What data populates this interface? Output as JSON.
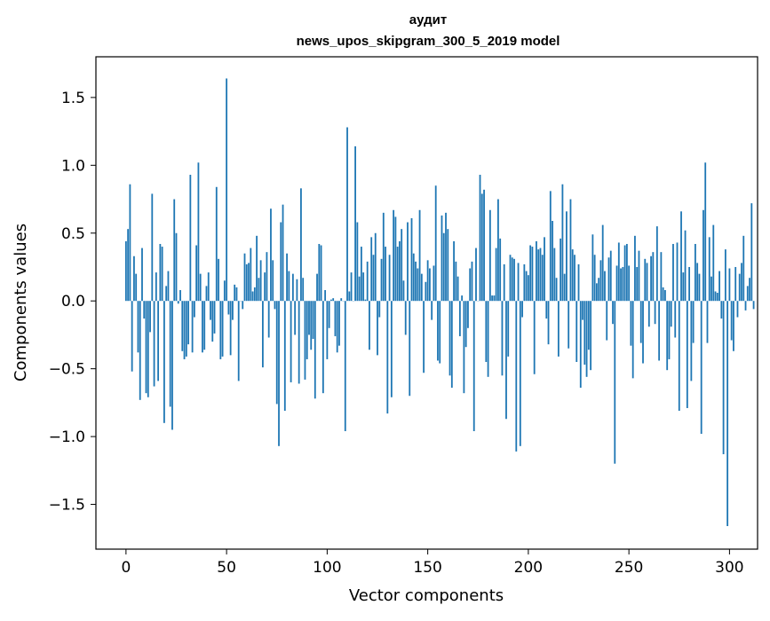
{
  "chart_data": {
    "type": "bar",
    "title": "аудит",
    "subtitle": "news_upos_skipgram_300_5_2019 model",
    "xlabel": "Vector components",
    "ylabel": "Components values",
    "xlim": [
      -14.95,
      313.95
    ],
    "ylim": [
      -1.83,
      1.8
    ],
    "xticks": [
      0,
      50,
      100,
      150,
      200,
      250,
      300
    ],
    "yticks": [
      -1.5,
      -1.0,
      -0.5,
      0.0,
      0.5,
      1.0,
      1.5
    ],
    "ytick_labels": [
      "−1.5",
      "−1.0",
      "−0.5",
      "0.0",
      "0.5",
      "1.0",
      "1.5"
    ],
    "bar_color": "#1f77b4",
    "grid": false,
    "legend": "none",
    "values": [
      0.44,
      0.53,
      0.86,
      -0.52,
      0.33,
      0.2,
      -0.38,
      -0.73,
      0.39,
      -0.13,
      -0.68,
      -0.71,
      -0.23,
      0.79,
      -0.63,
      0.21,
      -0.59,
      0.42,
      0.4,
      -0.9,
      0.11,
      0.22,
      -0.78,
      -0.95,
      0.75,
      0.5,
      -0.02,
      0.08,
      -0.37,
      -0.43,
      -0.41,
      -0.32,
      0.93,
      -0.38,
      -0.12,
      0.41,
      1.02,
      0.2,
      -0.38,
      -0.36,
      0.11,
      0.21,
      -0.14,
      -0.3,
      -0.24,
      0.84,
      0.31,
      -0.43,
      -0.41,
      0.15,
      1.64,
      -0.1,
      -0.4,
      -0.14,
      0.12,
      0.1,
      -0.59,
      0.0,
      -0.06,
      0.35,
      0.27,
      0.28,
      0.39,
      0.07,
      0.1,
      0.48,
      0.17,
      0.3,
      -0.49,
      0.21,
      0.36,
      -0.27,
      0.68,
      0.3,
      -0.06,
      -0.76,
      -1.07,
      0.58,
      0.71,
      -0.81,
      0.35,
      0.22,
      -0.6,
      0.2,
      -0.25,
      0.16,
      -0.61,
      0.83,
      0.17,
      -0.58,
      -0.43,
      -0.25,
      -0.36,
      -0.28,
      -0.72,
      0.2,
      0.42,
      0.41,
      -0.68,
      0.08,
      -0.43,
      -0.2,
      0.01,
      0.02,
      -0.26,
      -0.38,
      -0.33,
      0.02,
      0.0,
      -0.96,
      1.28,
      0.07,
      0.21,
      0.0,
      1.14,
      0.58,
      0.18,
      0.4,
      0.21,
      0.01,
      0.29,
      -0.36,
      0.47,
      0.34,
      0.5,
      -0.4,
      -0.12,
      0.31,
      0.65,
      0.4,
      -0.83,
      0.34,
      -0.71,
      0.67,
      0.62,
      0.4,
      0.44,
      0.53,
      0.15,
      -0.25,
      0.58,
      -0.7,
      0.61,
      0.35,
      0.29,
      0.24,
      0.67,
      0.2,
      -0.53,
      0.14,
      0.3,
      0.24,
      -0.14,
      0.26,
      0.85,
      -0.44,
      -0.46,
      0.63,
      0.5,
      0.65,
      0.53,
      -0.55,
      -0.64,
      0.44,
      0.29,
      0.18,
      -0.26,
      0.04,
      -0.68,
      -0.34,
      -0.2,
      0.24,
      0.29,
      -0.96,
      0.39,
      0.0,
      0.93,
      0.79,
      0.82,
      -0.45,
      -0.56,
      0.67,
      0.04,
      0.04,
      0.39,
      0.75,
      0.46,
      -0.55,
      0.27,
      -0.87,
      -0.41,
      0.34,
      0.32,
      0.31,
      -1.11,
      0.28,
      -1.07,
      -0.12,
      0.27,
      0.22,
      0.19,
      0.41,
      0.4,
      -0.54,
      0.44,
      0.38,
      0.39,
      0.34,
      0.47,
      -0.13,
      -0.32,
      0.81,
      0.59,
      0.39,
      0.17,
      -0.41,
      0.46,
      0.86,
      0.2,
      0.66,
      -0.35,
      0.75,
      0.38,
      0.34,
      -0.45,
      0.27,
      -0.64,
      -0.14,
      -0.47,
      -0.56,
      -0.36,
      -0.51,
      0.49,
      0.34,
      0.13,
      0.17,
      0.3,
      0.56,
      0.22,
      -0.29,
      0.32,
      0.37,
      -0.17,
      -1.2,
      0.26,
      0.43,
      0.24,
      0.25,
      0.41,
      0.42,
      0.26,
      -0.33,
      -0.57,
      0.48,
      0.25,
      0.37,
      -0.31,
      -0.46,
      0.31,
      0.28,
      -0.19,
      0.33,
      0.36,
      -0.17,
      0.55,
      -0.44,
      0.36,
      0.1,
      0.08,
      -0.51,
      -0.43,
      -0.19,
      0.42,
      -0.27,
      0.43,
      -0.81,
      0.66,
      0.21,
      0.52,
      -0.79,
      0.25,
      -0.59,
      -0.31,
      0.42,
      0.28,
      0.2,
      -0.98,
      0.67,
      1.02,
      -0.31,
      0.47,
      0.18,
      0.56,
      0.07,
      0.06,
      0.22,
      -0.13,
      -1.13,
      0.38,
      -1.66,
      0.24,
      -0.29,
      -0.37,
      0.25,
      -0.12,
      0.2,
      0.28,
      0.48,
      -0.07,
      0.11,
      0.17,
      0.72,
      -0.06
    ]
  }
}
